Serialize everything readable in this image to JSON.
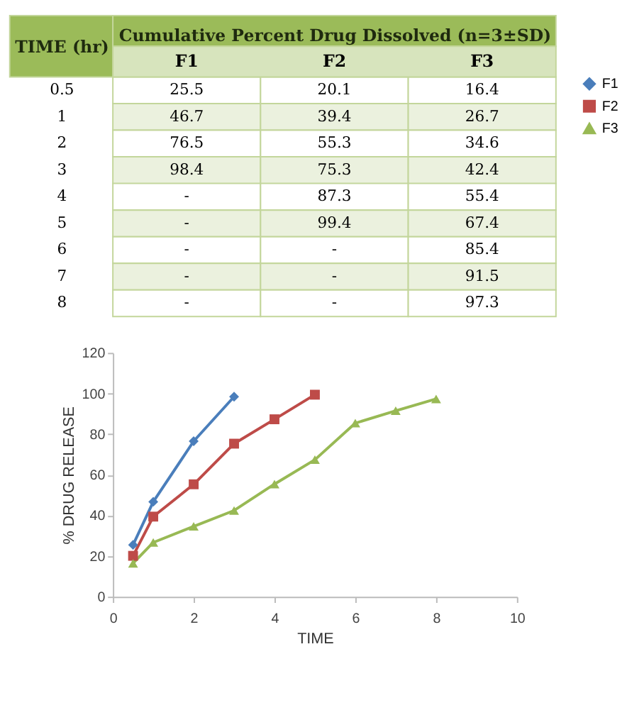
{
  "chart_data": [
    {
      "type": "heatmap",
      "xlabel": "Cumulative Percent Drug Dissolved (n=3±SD)",
      "ylabel": "TIME (hr)",
      "categories": [
        "F1",
        "F2",
        "F3"
      ],
      "y_categories": [
        "0.5",
        "1",
        "2",
        "3",
        "4",
        "5",
        "6",
        "7",
        "8"
      ],
      "cells": [
        [
          25.5,
          20.1,
          16.4
        ],
        [
          46.7,
          39.4,
          26.7
        ],
        [
          76.5,
          55.3,
          34.6
        ],
        [
          98.4,
          75.3,
          42.4
        ],
        [
          null,
          87.3,
          55.4
        ],
        [
          null,
          99.4,
          67.4
        ],
        [
          null,
          null,
          85.4
        ],
        [
          null,
          null,
          91.5
        ],
        [
          null,
          null,
          97.3
        ]
      ],
      "cell_labels": [
        [
          "25.5",
          "20.1",
          "16.4"
        ],
        [
          "46.7",
          "39.4",
          "26.7"
        ],
        [
          "76.5",
          "55.3",
          "34.6"
        ],
        [
          "98.4",
          "75.3",
          "42.4"
        ],
        [
          "-",
          "87.3",
          "55.4"
        ],
        [
          "-",
          "99.4",
          "67.4"
        ],
        [
          "-",
          "-",
          "85.4"
        ],
        [
          "-",
          "-",
          "91.5"
        ],
        [
          "-",
          "-",
          "97.3"
        ]
      ]
    },
    {
      "type": "line",
      "xlabel": "TIME",
      "ylabel": "% DRUG RELEASE",
      "series": [
        {
          "name": "F1",
          "color": "#4a7ebb",
          "marker": "diamond",
          "x": [
            0.5,
            1,
            2,
            3
          ],
          "values": [
            25.5,
            46.7,
            76.5,
            98.4
          ]
        },
        {
          "name": "F2",
          "color": "#be4b48",
          "marker": "square",
          "x": [
            0.5,
            1,
            2,
            3,
            4,
            5
          ],
          "values": [
            20.1,
            39.4,
            55.3,
            75.3,
            87.3,
            99.4
          ]
        },
        {
          "name": "F3",
          "color": "#98b954",
          "marker": "triangle",
          "x": [
            0.5,
            1,
            2,
            3,
            4,
            5,
            6,
            7,
            8
          ],
          "values": [
            16.4,
            26.7,
            34.6,
            42.4,
            55.4,
            67.4,
            85.4,
            91.5,
            97.3
          ]
        }
      ],
      "xlim": [
        0,
        10
      ],
      "xticks": [
        0,
        2,
        4,
        6,
        8,
        10
      ],
      "ylim": [
        0,
        120
      ],
      "yticks": [
        0,
        20,
        40,
        60,
        80,
        100,
        120
      ],
      "grid": false,
      "legend": "right"
    }
  ]
}
